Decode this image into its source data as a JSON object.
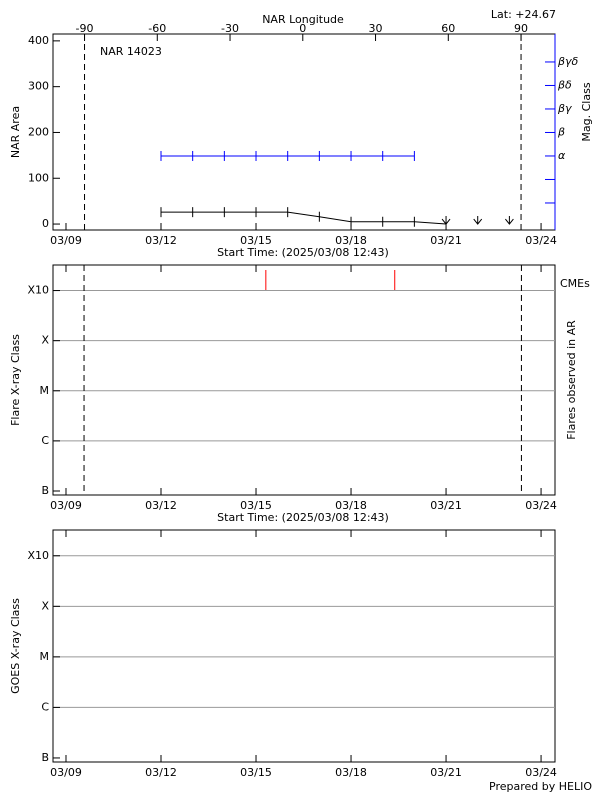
{
  "chart_data": [
    {
      "type": "area-class",
      "title": "NAR 14023",
      "annotation": "Lat: +24.67",
      "x2label": "NAR Longitude",
      "ylabel": "NAR Area",
      "y2label": "Mag. Class",
      "xlabel": "Start Time: (2025/03/08 12:43)",
      "xlim": [
        8.59,
        24.44
      ],
      "xticks": [
        {
          "value": 9,
          "label": "03/09"
        },
        {
          "value": 12,
          "label": "03/12"
        },
        {
          "value": 15,
          "label": "03/15"
        },
        {
          "value": 18,
          "label": "03/18"
        },
        {
          "value": 21,
          "label": "03/21"
        },
        {
          "value": 24,
          "label": "03/24"
        }
      ],
      "x2lim": [
        -103,
        104
      ],
      "x2ticks": [
        -90,
        -60,
        -30,
        0,
        30,
        60,
        90
      ],
      "ylim": [
        -13,
        415
      ],
      "yticks": [
        0,
        100,
        200,
        300,
        400
      ],
      "y2lim": [
        -0.15,
        8.19
      ],
      "y2ticks": [
        {
          "value": 3,
          "label": "α"
        },
        {
          "value": 4,
          "label": "β"
        },
        {
          "value": 5,
          "label": "βγ"
        },
        {
          "value": 6,
          "label": "βδ"
        },
        {
          "value": 7,
          "label": "βγδ"
        }
      ],
      "y2minor_ticks": [
        1,
        2
      ],
      "y2color": "#0000ff",
      "limb_longitudes": [
        -90,
        90
      ],
      "series": [
        {
          "color": "#000000",
          "x": [
            12,
            13,
            14,
            15,
            16,
            17,
            18,
            19,
            20,
            21
          ],
          "values": [
            26,
            26,
            26,
            26,
            26,
            16,
            5,
            5,
            5,
            0
          ]
        },
        {
          "color": "#0000ff",
          "axis": "y2",
          "x": [
            12,
            13,
            14,
            15,
            16,
            17,
            18,
            19,
            20
          ],
          "values": [
            3,
            3,
            3,
            3,
            3,
            3,
            3,
            3,
            3
          ]
        }
      ],
      "arrows": {
        "x": [
          21,
          22,
          23
        ],
        "values": [
          0,
          0,
          0
        ]
      }
    },
    {
      "type": "flare",
      "xlabel": "Start Time: (2025/03/08 12:43)",
      "ylabel": "Flare X-ray Class",
      "y2label": "Flares observed in AR",
      "xlim": [
        8.59,
        24.44
      ],
      "xticks": [
        {
          "value": 9,
          "label": "03/09"
        },
        {
          "value": 12,
          "label": "03/12"
        },
        {
          "value": 15,
          "label": "03/15"
        },
        {
          "value": 18,
          "label": "03/18"
        },
        {
          "value": 21,
          "label": "03/21"
        },
        {
          "value": 24,
          "label": "03/24"
        }
      ],
      "ylim": [
        -7.08,
        -2.49
      ],
      "yticks": [
        {
          "value": -7,
          "label": "B"
        },
        {
          "value": -6,
          "label": "C"
        },
        {
          "value": -5,
          "label": "M"
        },
        {
          "value": -4,
          "label": "X"
        },
        {
          "value": -3,
          "label": "X10"
        }
      ],
      "grid": true,
      "limb_x": [
        9.57,
        23.38
      ],
      "cmes": {
        "name": "CMEs",
        "color": "#ff0000",
        "x": [
          15.31,
          19.38
        ]
      }
    },
    {
      "type": "goes",
      "ylabel": "GOES X-ray Class",
      "xlim": [
        8.59,
        24.44
      ],
      "xticks": [
        {
          "value": 9,
          "label": "03/09"
        },
        {
          "value": 12,
          "label": "03/12"
        },
        {
          "value": 15,
          "label": "03/15"
        },
        {
          "value": 18,
          "label": "03/18"
        },
        {
          "value": 21,
          "label": "03/21"
        },
        {
          "value": 24,
          "label": "03/24"
        }
      ],
      "ylim": [
        -7.08,
        -2.49
      ],
      "yticks": [
        {
          "value": -7,
          "label": "B"
        },
        {
          "value": -6,
          "label": "C"
        },
        {
          "value": -5,
          "label": "M"
        },
        {
          "value": -4,
          "label": "X"
        },
        {
          "value": -3,
          "label": "X10"
        }
      ],
      "grid": true
    }
  ],
  "footer": "Prepared by HELIO"
}
